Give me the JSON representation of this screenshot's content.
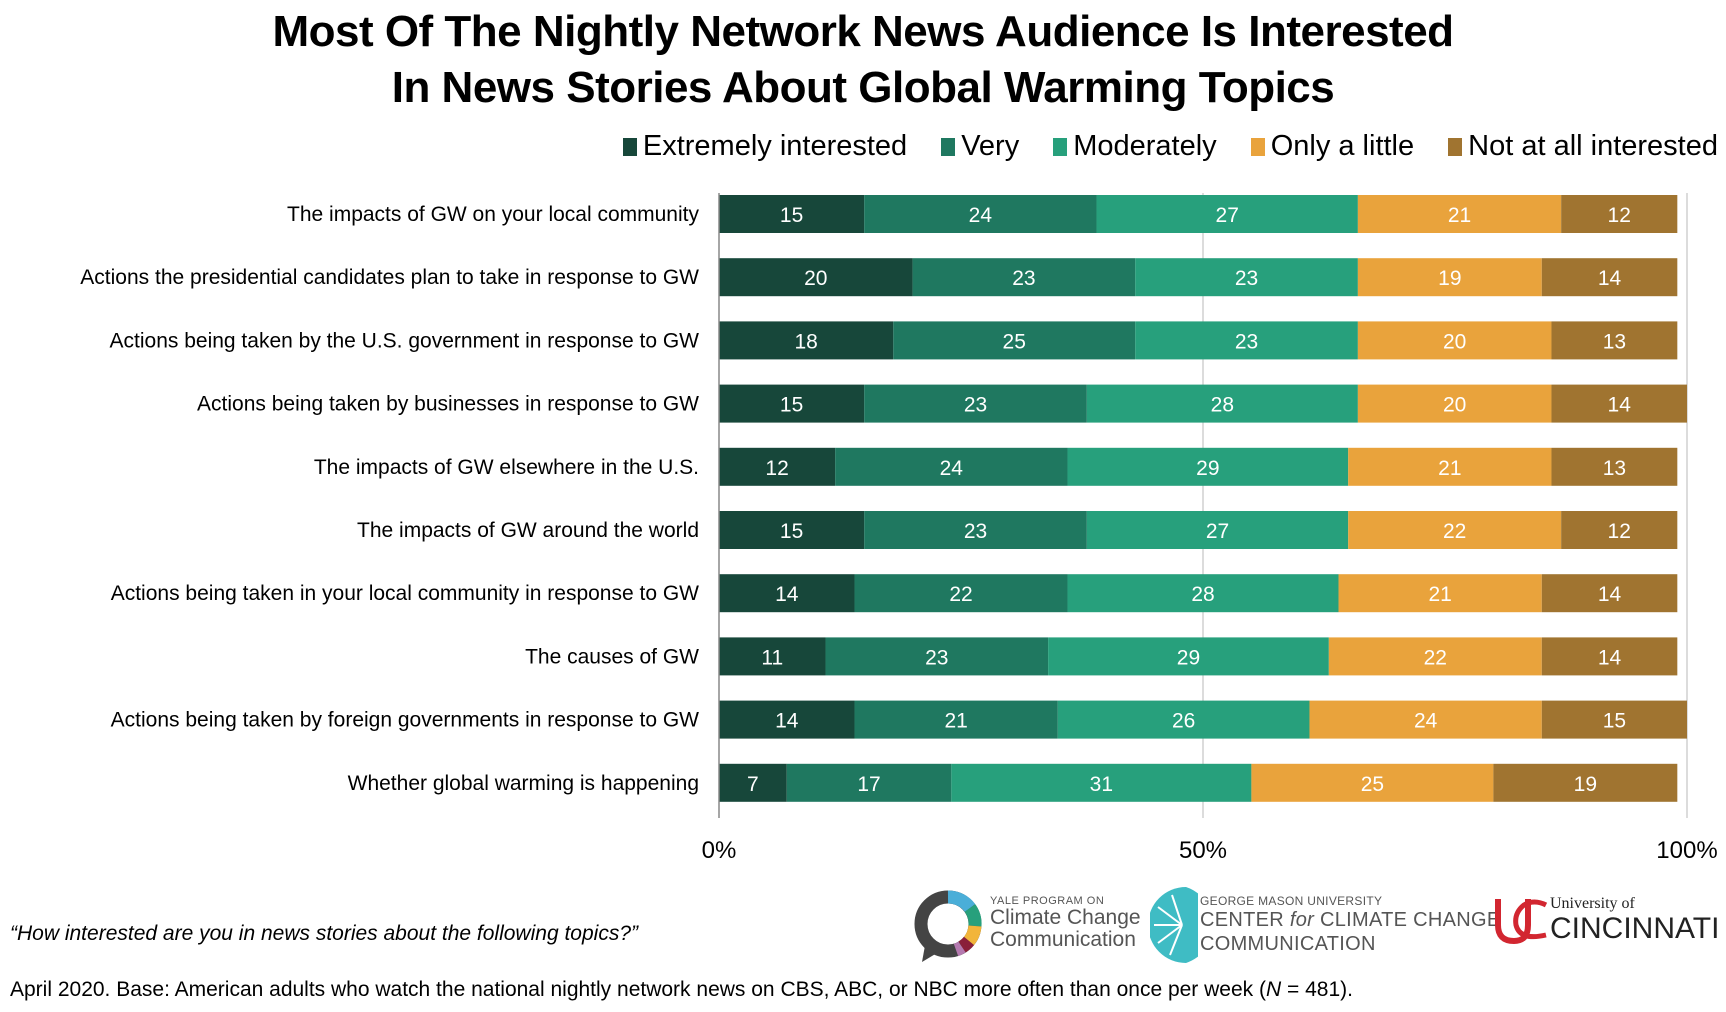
{
  "title_lines": [
    "Most Of The Nightly Network News Audience Is Interested",
    "In News Stories About Global Warming Topics"
  ],
  "question": "“How interested are you in news stories about the following topics?”",
  "footnote": {
    "prefix": "April 2020. Base: American adults who watch the national nightly network news on CBS, ABC, or NBC more often than once per week (",
    "n_label": "N",
    "suffix": " = 481)."
  },
  "logos": {
    "yale": {
      "line1": "YALE PROGRAM ON",
      "line2": "Climate Change",
      "line3": "Communication"
    },
    "gmu": {
      "line1": "GEORGE MASON UNIVERSITY",
      "line2a": "CENTER ",
      "line2b": "for",
      "line2c": " CLIMATE CHANGE",
      "line3": "COMMUNICATION"
    },
    "uc": {
      "line1": "University of",
      "line2": "CINCINNATI"
    }
  },
  "chart_data": {
    "type": "bar",
    "orientation": "horizontal",
    "stacked": true,
    "title": "Most Of The Nightly Network News Audience Is Interested In News Stories About Global Warming Topics",
    "xlabel": "",
    "ylabel": "",
    "xlim": [
      0,
      100
    ],
    "xticks": [
      0,
      50,
      100
    ],
    "xtick_labels": [
      "0%",
      "50%",
      "100%"
    ],
    "grid": true,
    "legend_position": "top-right",
    "categories": [
      "The impacts of GW on your local community",
      "Actions the presidential candidates plan to take in response to GW",
      "Actions being taken by the U.S. government in response to GW",
      "Actions being taken by businesses in response to GW",
      "The impacts of GW elsewhere in the U.S.",
      "The impacts of GW around the world",
      "Actions being taken in your local community in response to GW",
      "The causes of GW",
      "Actions being taken by foreign governments in response to GW",
      "Whether global warming is happening"
    ],
    "series": [
      {
        "name": "Extremely interested",
        "color": "#17473a",
        "values": [
          15,
          20,
          18,
          15,
          12,
          15,
          14,
          11,
          14,
          7
        ]
      },
      {
        "name": "Very",
        "color": "#1f7860",
        "values": [
          24,
          23,
          25,
          23,
          24,
          23,
          22,
          23,
          21,
          17
        ]
      },
      {
        "name": "Moderately",
        "color": "#27a07c",
        "values": [
          27,
          23,
          23,
          28,
          29,
          27,
          28,
          29,
          26,
          31
        ]
      },
      {
        "name": "Only a little",
        "color": "#e9a33c",
        "values": [
          21,
          19,
          20,
          20,
          21,
          22,
          21,
          22,
          24,
          25
        ]
      },
      {
        "name": "Not at all interested",
        "color": "#a07430",
        "values": [
          12,
          14,
          13,
          14,
          13,
          12,
          14,
          14,
          15,
          19
        ]
      }
    ]
  }
}
